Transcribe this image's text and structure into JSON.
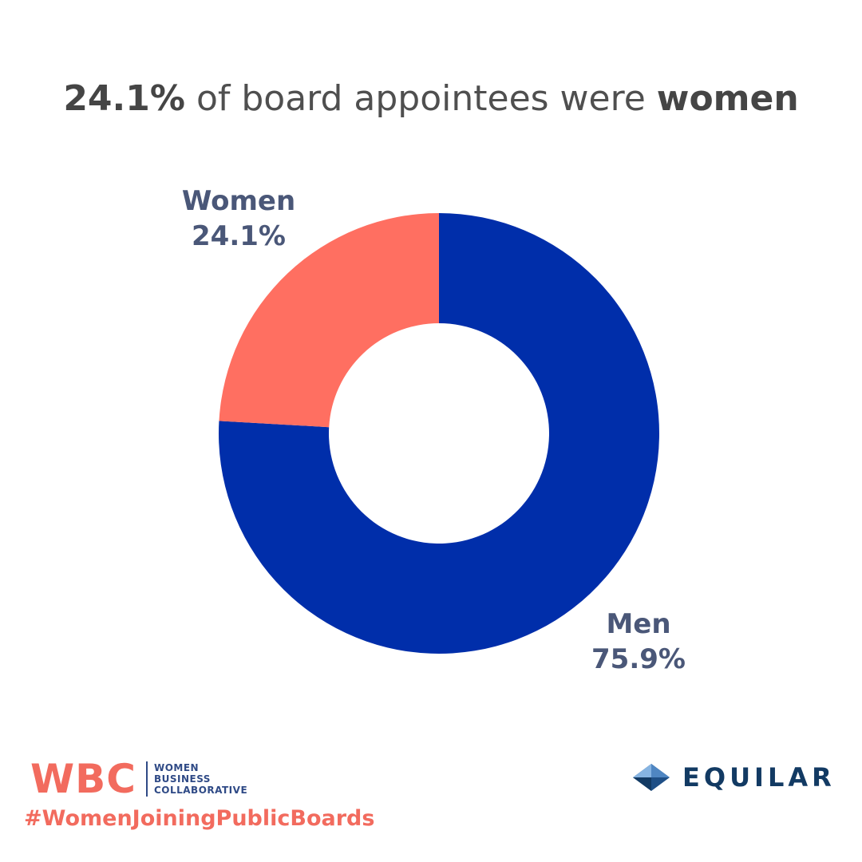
{
  "title": {
    "value": "24.1%",
    "middle": " of board appointees were ",
    "subject": "women"
  },
  "chart_data": {
    "type": "pie",
    "title": "24.1% of board appointees were women",
    "series": [
      {
        "name": "Women",
        "value": 24.1,
        "label": "24.1%",
        "color": "#ff6f61"
      },
      {
        "name": "Men",
        "value": 75.9,
        "label": "75.9%",
        "color": "#002eaa"
      }
    ]
  },
  "labels": {
    "women_name": "Women",
    "women_value": "24.1%",
    "men_name": "Men",
    "men_value": "75.9%"
  },
  "footer": {
    "wbc_letters": "WBC",
    "wbc_line1": "WOMEN",
    "wbc_line2": "BUSINESS",
    "wbc_line3": "COLLABORATIVE",
    "hashtag": "#WomenJoiningPublicBoards",
    "equilar": "EQUILAR"
  },
  "colors": {
    "coral": "#f26b5e",
    "navy": "#2f4a86",
    "equilar_blue": "#123a63"
  }
}
